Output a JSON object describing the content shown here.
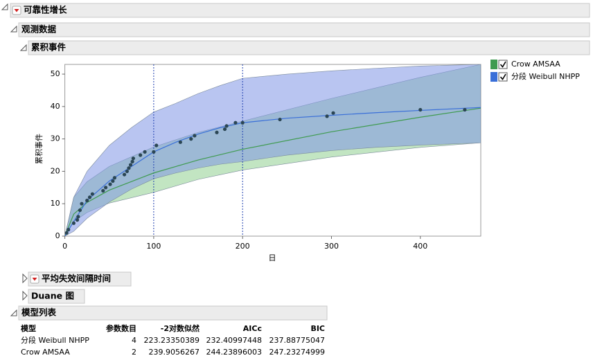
{
  "sections": {
    "reliability_growth": "可靠性增长",
    "observed_data": "观测数据",
    "cumulative_events": "累积事件",
    "mtbf": "平均失效间隔时间",
    "duane": "Duane 图",
    "model_list": "模型列表"
  },
  "chart_data": {
    "type": "scatter",
    "x_label": "日",
    "y_label": "累积事件",
    "xlim": [
      0,
      468
    ],
    "ylim": [
      0,
      53
    ],
    "xticks": [
      0,
      100,
      200,
      300,
      400
    ],
    "yticks": [
      0,
      10,
      20,
      30,
      40,
      50
    ],
    "change_points": [
      100,
      200
    ],
    "points": {
      "color": "#2b4654",
      "x": [
        2,
        4,
        10,
        14,
        15,
        17,
        19,
        25,
        28,
        31,
        43,
        46,
        51,
        54,
        56,
        67,
        70,
        72,
        74,
        76,
        77,
        85,
        90,
        100,
        103,
        130,
        142,
        146,
        171,
        180,
        182,
        192,
        200,
        242,
        295,
        302,
        400,
        450
      ],
      "y": [
        1,
        2,
        4,
        5,
        6,
        8,
        10,
        11,
        12,
        13,
        14,
        15,
        16,
        17,
        18,
        19,
        20,
        21,
        22,
        23,
        24,
        25,
        26,
        26,
        28,
        29,
        30,
        31,
        32,
        33,
        34,
        35,
        35,
        36,
        37,
        38,
        39,
        39
      ]
    },
    "series": [
      {
        "name": "Crow AMSAA",
        "color": "#3f9b4f",
        "band_color": "#8fd08f",
        "x": [
          0,
          10,
          25,
          50,
          100,
          150,
          200,
          300,
          400,
          468
        ],
        "values": [
          0,
          6.8,
          10.4,
          14.2,
          19.5,
          23.5,
          26.8,
          32.2,
          36.7,
          39.5
        ],
        "lower": [
          0,
          4.5,
          7.3,
          10.2,
          13.5,
          17.5,
          20.4,
          24.4,
          27.4,
          28.8
        ],
        "upper": [
          0,
          12,
          16.8,
          21.5,
          27.5,
          32,
          35.5,
          42.5,
          49,
          53
        ]
      },
      {
        "name": "分段 Weibull NHPP",
        "color": "#3a6fd8",
        "band_color": "#7f96e6",
        "x": [
          0,
          10,
          25,
          50,
          75,
          100,
          125,
          150,
          175,
          200,
          250,
          300,
          350,
          400,
          468
        ],
        "values": [
          0,
          4.5,
          11,
          17,
          21.5,
          26,
          29,
          31.5,
          33.5,
          35,
          36.4,
          37.3,
          38.1,
          38.8,
          39.7
        ],
        "lower": [
          0,
          1.5,
          5.5,
          10.5,
          14.5,
          17.7,
          19.5,
          21,
          22.2,
          23,
          25,
          26.4,
          27.4,
          28.1,
          28.8
        ],
        "upper": [
          0,
          12,
          20,
          28,
          33.5,
          38.3,
          41,
          44,
          46.5,
          48.7,
          50,
          51,
          51.8,
          52.5,
          53
        ]
      }
    ]
  },
  "table": {
    "columns": [
      "模型",
      "参数数目",
      "-2对数似然",
      "AICc",
      "BIC"
    ],
    "rows": [
      [
        "分段 Weibull NHPP",
        "4",
        "223.23350389",
        "232.40997448",
        "237.88775047"
      ],
      [
        "Crow AMSAA",
        "2",
        "239.9056267",
        "244.23896003",
        "247.23274999"
      ]
    ]
  }
}
